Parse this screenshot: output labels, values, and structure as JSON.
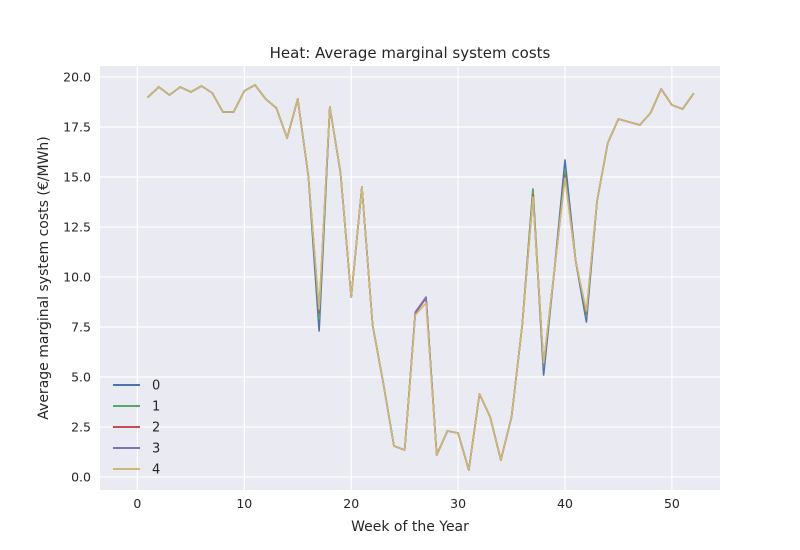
{
  "chart_data": {
    "type": "line",
    "title": "Heat: Average marginal system costs",
    "xlabel": "Week of the Year",
    "ylabel": "Average marginal system costs (€/MWh)",
    "xlim": [
      -3.5,
      54.5
    ],
    "ylim": [
      -0.65,
      20.55
    ],
    "xticks": [
      0,
      10,
      20,
      30,
      40,
      50
    ],
    "yticks": [
      0.0,
      2.5,
      5.0,
      7.5,
      10.0,
      12.5,
      15.0,
      17.5,
      20.0
    ],
    "xtick_labels": [
      "0",
      "10",
      "20",
      "30",
      "40",
      "50"
    ],
    "ytick_labels": [
      "0.0",
      "2.5",
      "5.0",
      "7.5",
      "10.0",
      "12.5",
      "15.0",
      "17.5",
      "20.0"
    ],
    "grid": true,
    "legend_position": "lower-left",
    "x": [
      1,
      2,
      3,
      4,
      5,
      6,
      7,
      8,
      9,
      10,
      11,
      12,
      13,
      14,
      15,
      16,
      17,
      18,
      19,
      20,
      21,
      22,
      23,
      24,
      25,
      26,
      27,
      28,
      29,
      30,
      31,
      32,
      33,
      34,
      35,
      36,
      37,
      38,
      39,
      40,
      41,
      42,
      43,
      44,
      45,
      46,
      47,
      48,
      49,
      50,
      51,
      52
    ],
    "series": [
      {
        "name": "0",
        "color": "#4c72b0",
        "values": [
          19.0,
          19.5,
          19.1,
          19.5,
          19.25,
          19.55,
          19.2,
          18.25,
          18.25,
          19.3,
          19.6,
          18.9,
          18.45,
          16.95,
          18.9,
          15.0,
          7.3,
          18.5,
          15.2,
          9.0,
          14.5,
          7.6,
          4.7,
          1.55,
          1.35,
          8.2,
          8.95,
          1.1,
          2.3,
          2.2,
          0.35,
          4.15,
          3.0,
          0.85,
          3.0,
          7.6,
          14.4,
          5.1,
          10.3,
          15.85,
          10.8,
          7.75,
          13.8,
          16.7,
          17.9,
          17.75,
          17.6,
          18.2,
          19.4,
          18.6,
          18.4,
          19.15
        ]
      },
      {
        "name": "1",
        "color": "#55a868",
        "values": [
          19.0,
          19.5,
          19.1,
          19.5,
          19.25,
          19.55,
          19.2,
          18.25,
          18.25,
          19.3,
          19.6,
          18.9,
          18.45,
          16.95,
          18.9,
          15.0,
          7.9,
          18.5,
          15.2,
          9.0,
          14.5,
          7.6,
          4.7,
          1.55,
          1.35,
          8.2,
          8.95,
          1.1,
          2.3,
          2.2,
          0.35,
          4.15,
          3.0,
          0.85,
          3.0,
          7.6,
          14.4,
          5.5,
          10.3,
          15.3,
          10.8,
          8.0,
          13.8,
          16.7,
          17.9,
          17.75,
          17.6,
          18.2,
          19.4,
          18.6,
          18.4,
          19.15
        ]
      },
      {
        "name": "2",
        "color": "#c44e52",
        "values": [
          19.0,
          19.5,
          19.1,
          19.5,
          19.25,
          19.55,
          19.2,
          18.25,
          18.25,
          19.3,
          19.6,
          18.9,
          18.45,
          16.95,
          18.9,
          15.0,
          8.2,
          18.5,
          15.2,
          9.0,
          14.5,
          7.6,
          4.7,
          1.55,
          1.35,
          8.2,
          8.95,
          1.1,
          2.3,
          2.2,
          0.35,
          4.15,
          3.0,
          0.85,
          3.0,
          7.6,
          14.1,
          5.6,
          10.3,
          15.1,
          10.8,
          8.15,
          13.8,
          16.7,
          17.9,
          17.75,
          17.6,
          18.2,
          19.4,
          18.6,
          18.4,
          19.15
        ]
      },
      {
        "name": "3",
        "color": "#8172b3",
        "values": [
          19.0,
          19.5,
          19.1,
          19.5,
          19.25,
          19.55,
          19.2,
          18.25,
          18.25,
          19.3,
          19.6,
          18.9,
          18.45,
          16.95,
          18.9,
          15.0,
          8.3,
          18.5,
          15.2,
          9.0,
          14.5,
          7.6,
          4.7,
          1.55,
          1.35,
          8.25,
          9.0,
          1.1,
          2.3,
          2.2,
          0.35,
          4.15,
          3.0,
          0.85,
          3.0,
          7.6,
          14.0,
          5.6,
          10.3,
          15.0,
          10.8,
          8.2,
          13.8,
          16.7,
          17.9,
          17.75,
          17.6,
          18.2,
          19.4,
          18.6,
          18.4,
          19.15
        ]
      },
      {
        "name": "4",
        "color": "#ccb974",
        "values": [
          19.0,
          19.5,
          19.1,
          19.5,
          19.25,
          19.55,
          19.2,
          18.25,
          18.25,
          19.3,
          19.6,
          18.9,
          18.45,
          16.95,
          18.9,
          15.0,
          8.4,
          18.5,
          15.2,
          9.0,
          14.5,
          7.6,
          4.7,
          1.55,
          1.35,
          8.1,
          8.7,
          1.1,
          2.3,
          2.2,
          0.35,
          4.15,
          3.0,
          0.85,
          3.0,
          7.6,
          14.0,
          5.7,
          10.3,
          14.95,
          10.8,
          8.3,
          13.8,
          16.7,
          17.9,
          17.75,
          17.6,
          18.2,
          19.4,
          18.6,
          18.4,
          19.15
        ]
      }
    ]
  }
}
